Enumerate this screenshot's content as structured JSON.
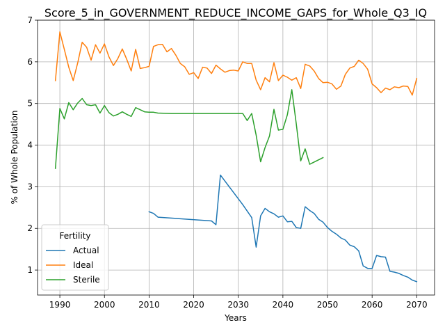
{
  "chart_data": {
    "type": "line",
    "title": "Score_5_in_GOVERNMENT_REDUCE_INCOME_GAPS_for_Whole_Q3_IQ",
    "xlabel": "Years",
    "ylabel": "% of Whole Population",
    "xlim": [
      1985,
      2074
    ],
    "ylim": [
      0.4,
      7.0
    ],
    "xticks": [
      1990,
      2000,
      2010,
      2020,
      2030,
      2040,
      2050,
      2060,
      2070
    ],
    "yticks": [
      1,
      2,
      3,
      4,
      5,
      6,
      7
    ],
    "grid": true,
    "legend": {
      "title": "Fertility",
      "placement": "lower-left"
    },
    "series": [
      {
        "name": "Actual",
        "color": "#1f77b4",
        "points": [
          [
            2010,
            2.4
          ],
          [
            2011,
            2.36
          ],
          [
            2012,
            2.27
          ],
          [
            2024,
            2.18
          ],
          [
            2025,
            2.09
          ],
          [
            2026,
            3.28
          ],
          [
            2031,
            2.57
          ],
          [
            2033,
            2.26
          ],
          [
            2034,
            1.55
          ],
          [
            2035,
            2.3
          ],
          [
            2036,
            2.48
          ],
          [
            2037,
            2.4
          ],
          [
            2038,
            2.35
          ],
          [
            2039,
            2.27
          ],
          [
            2040,
            2.3
          ],
          [
            2041,
            2.16
          ],
          [
            2042,
            2.17
          ],
          [
            2043,
            2.02
          ],
          [
            2044,
            2.0
          ],
          [
            2045,
            2.52
          ],
          [
            2046,
            2.43
          ],
          [
            2047,
            2.36
          ],
          [
            2048,
            2.22
          ],
          [
            2049,
            2.15
          ],
          [
            2050,
            2.02
          ],
          [
            2051,
            1.93
          ],
          [
            2052,
            1.86
          ],
          [
            2053,
            1.77
          ],
          [
            2054,
            1.72
          ],
          [
            2055,
            1.6
          ],
          [
            2056,
            1.56
          ],
          [
            2057,
            1.46
          ],
          [
            2058,
            1.1
          ],
          [
            2059,
            1.04
          ],
          [
            2060,
            1.04
          ],
          [
            2061,
            1.35
          ],
          [
            2062,
            1.32
          ],
          [
            2063,
            1.31
          ],
          [
            2064,
            0.97
          ],
          [
            2065,
            0.95
          ],
          [
            2066,
            0.92
          ],
          [
            2067,
            0.87
          ],
          [
            2068,
            0.83
          ],
          [
            2069,
            0.76
          ],
          [
            2070,
            0.72
          ]
        ]
      },
      {
        "name": "Ideal",
        "color": "#ff7f0e",
        "points": [
          [
            1989,
            5.55
          ],
          [
            1990,
            6.72
          ],
          [
            1991,
            6.3
          ],
          [
            1992,
            5.87
          ],
          [
            1993,
            5.55
          ],
          [
            1994,
            5.97
          ],
          [
            1995,
            6.47
          ],
          [
            1996,
            6.35
          ],
          [
            1997,
            6.04
          ],
          [
            1998,
            6.41
          ],
          [
            1999,
            6.21
          ],
          [
            2000,
            6.43
          ],
          [
            2001,
            6.12
          ],
          [
            2002,
            5.91
          ],
          [
            2003,
            6.08
          ],
          [
            2004,
            6.31
          ],
          [
            2005,
            6.06
          ],
          [
            2006,
            5.78
          ],
          [
            2007,
            6.3
          ],
          [
            2008,
            5.84
          ],
          [
            2009,
            5.86
          ],
          [
            2010,
            5.89
          ],
          [
            2011,
            6.37
          ],
          [
            2012,
            6.41
          ],
          [
            2013,
            6.42
          ],
          [
            2014,
            6.24
          ],
          [
            2015,
            6.32
          ],
          [
            2016,
            6.16
          ],
          [
            2017,
            5.96
          ],
          [
            2018,
            5.88
          ],
          [
            2019,
            5.7
          ],
          [
            2020,
            5.74
          ],
          [
            2021,
            5.6
          ],
          [
            2022,
            5.87
          ],
          [
            2023,
            5.85
          ],
          [
            2024,
            5.72
          ],
          [
            2025,
            5.92
          ],
          [
            2026,
            5.83
          ],
          [
            2027,
            5.75
          ],
          [
            2028,
            5.79
          ],
          [
            2029,
            5.8
          ],
          [
            2030,
            5.78
          ],
          [
            2031,
            6.0
          ],
          [
            2032,
            5.96
          ],
          [
            2033,
            5.96
          ],
          [
            2034,
            5.56
          ],
          [
            2035,
            5.33
          ],
          [
            2036,
            5.62
          ],
          [
            2037,
            5.52
          ],
          [
            2038,
            5.98
          ],
          [
            2039,
            5.55
          ],
          [
            2040,
            5.68
          ],
          [
            2041,
            5.63
          ],
          [
            2042,
            5.56
          ],
          [
            2043,
            5.62
          ],
          [
            2044,
            5.36
          ],
          [
            2045,
            5.94
          ],
          [
            2046,
            5.9
          ],
          [
            2047,
            5.78
          ],
          [
            2048,
            5.6
          ],
          [
            2049,
            5.5
          ],
          [
            2050,
            5.51
          ],
          [
            2051,
            5.47
          ],
          [
            2052,
            5.34
          ],
          [
            2053,
            5.42
          ],
          [
            2054,
            5.7
          ],
          [
            2055,
            5.85
          ],
          [
            2056,
            5.89
          ],
          [
            2057,
            6.04
          ],
          [
            2058,
            5.96
          ],
          [
            2059,
            5.82
          ],
          [
            2060,
            5.47
          ],
          [
            2061,
            5.38
          ],
          [
            2062,
            5.26
          ],
          [
            2063,
            5.37
          ],
          [
            2064,
            5.33
          ],
          [
            2065,
            5.4
          ],
          [
            2066,
            5.38
          ],
          [
            2067,
            5.42
          ],
          [
            2068,
            5.41
          ],
          [
            2069,
            5.2
          ],
          [
            2070,
            5.6
          ]
        ]
      },
      {
        "name": "Sterile",
        "color": "#2ca02c",
        "points": [
          [
            1989,
            3.44
          ],
          [
            1990,
            4.88
          ],
          [
            1991,
            4.63
          ],
          [
            1992,
            5.02
          ],
          [
            1993,
            4.85
          ],
          [
            1994,
            5.01
          ],
          [
            1995,
            5.12
          ],
          [
            1996,
            4.97
          ],
          [
            1997,
            4.95
          ],
          [
            1998,
            4.97
          ],
          [
            1999,
            4.77
          ],
          [
            2000,
            4.95
          ],
          [
            2001,
            4.78
          ],
          [
            2002,
            4.7
          ],
          [
            2003,
            4.74
          ],
          [
            2004,
            4.8
          ],
          [
            2005,
            4.74
          ],
          [
            2006,
            4.69
          ],
          [
            2007,
            4.9
          ],
          [
            2008,
            4.85
          ],
          [
            2009,
            4.8
          ],
          [
            2010,
            4.79
          ],
          [
            2011,
            4.79
          ],
          [
            2012,
            4.77
          ],
          [
            2015,
            4.76
          ],
          [
            2031,
            4.76
          ],
          [
            2032,
            4.59
          ],
          [
            2033,
            4.76
          ],
          [
            2034,
            4.24
          ],
          [
            2035,
            3.6
          ],
          [
            2036,
            3.94
          ],
          [
            2037,
            4.22
          ],
          [
            2038,
            4.86
          ],
          [
            2039,
            4.36
          ],
          [
            2040,
            4.38
          ],
          [
            2041,
            4.73
          ],
          [
            2042,
            5.33
          ],
          [
            2043,
            4.51
          ],
          [
            2044,
            3.62
          ],
          [
            2045,
            3.91
          ],
          [
            2046,
            3.54
          ],
          [
            2049,
            3.7
          ]
        ]
      }
    ]
  }
}
